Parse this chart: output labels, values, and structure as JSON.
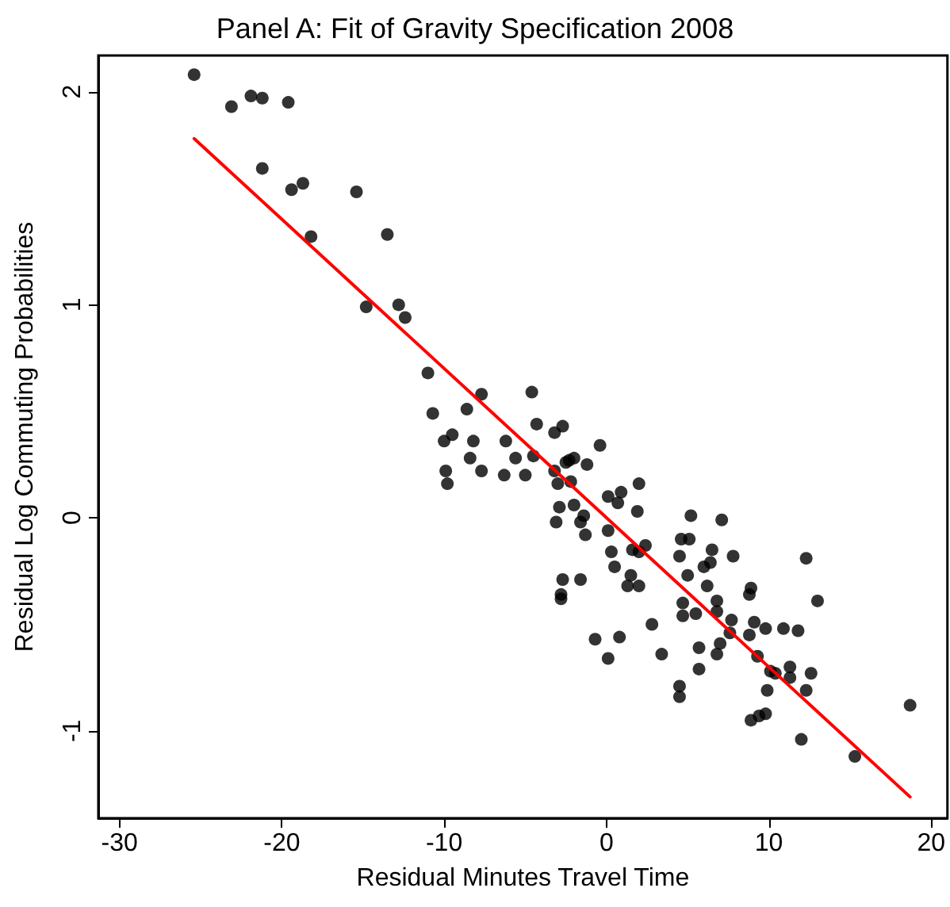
{
  "chart_data": {
    "type": "scatter",
    "title": "Panel A: Fit of Gravity Specification 2008",
    "xlabel": "Residual Minutes Travel Time",
    "ylabel": "Residual Log Commuting Probabilities",
    "xlim": [
      -31.3,
      21
    ],
    "xticks": [
      -30,
      -20,
      -10,
      0,
      10,
      20
    ],
    "ylim": [
      -1.41,
      2.17
    ],
    "yticks": [
      -1,
      0,
      1,
      2
    ],
    "grid": false,
    "marker": "circle",
    "series": [
      {
        "color": "#000000",
        "x": [
          -25.4,
          -23.1,
          -21.9,
          -21.2,
          -19.6,
          -21.2,
          -19.4,
          -18.7,
          -15.4,
          -18.2,
          -13.5,
          -14.8,
          -12.8,
          -12.4,
          -11.0,
          -10.7,
          -8.6,
          -7.7,
          -4.6,
          -4.3,
          -10.0,
          -9.5,
          -8.2,
          -8.4,
          -7.7,
          -9.9,
          -9.8,
          -6.2,
          -5.6,
          -6.3,
          -5.0,
          -4.5,
          -3.2,
          -2.7,
          -0.4,
          -2.5,
          -2.0,
          -2.3,
          -1.2,
          -3.2,
          -3.0,
          -2.2,
          -2.9,
          -3.1,
          -2.0,
          -1.4,
          -1.6,
          -1.3,
          0.1,
          0.9,
          0.7,
          2.0,
          1.9,
          0.1,
          0.3,
          1.6,
          2.0,
          2.4,
          0.5,
          1.5,
          1.3,
          2.0,
          -2.7,
          -2.8,
          -2.8,
          -1.6,
          2.8,
          -0.7,
          0.8,
          0.1,
          3.4,
          4.5,
          4.7,
          4.7,
          5.2,
          7.1,
          4.6,
          5.1,
          6.5,
          7.8,
          5.0,
          6.0,
          6.4,
          6.2,
          12.3,
          13.0,
          8.9,
          8.8,
          5.5,
          6.8,
          6.8,
          7.7,
          9.1,
          9.8,
          8.8,
          10.9,
          11.8,
          7.6,
          5.7,
          7.0,
          6.8,
          5.7,
          9.3,
          10.1,
          10.4,
          11.3,
          11.3,
          12.6,
          12.3,
          9.9,
          4.5,
          4.5,
          8.9,
          9.4,
          9.8,
          12.0,
          18.7,
          15.3
        ],
        "values": [
          2.08,
          1.93,
          1.98,
          1.97,
          1.95,
          1.64,
          1.54,
          1.57,
          1.53,
          1.32,
          1.33,
          0.99,
          1.0,
          0.94,
          0.68,
          0.49,
          0.51,
          0.58,
          0.59,
          0.44,
          0.36,
          0.39,
          0.36,
          0.28,
          0.22,
          0.22,
          0.16,
          0.36,
          0.28,
          0.2,
          0.2,
          0.29,
          0.4,
          0.43,
          0.34,
          0.26,
          0.28,
          0.27,
          0.25,
          0.22,
          0.16,
          0.17,
          0.05,
          -0.02,
          0.06,
          0.01,
          -0.02,
          -0.08,
          0.1,
          0.12,
          0.07,
          0.16,
          0.03,
          -0.06,
          -0.16,
          -0.15,
          -0.16,
          -0.13,
          -0.23,
          -0.27,
          -0.32,
          -0.32,
          -0.29,
          -0.36,
          -0.38,
          -0.29,
          -0.5,
          -0.57,
          -0.56,
          -0.66,
          -0.64,
          -0.18,
          -0.4,
          -0.46,
          0.01,
          -0.01,
          -0.1,
          -0.1,
          -0.15,
          -0.18,
          -0.27,
          -0.23,
          -0.21,
          -0.32,
          -0.19,
          -0.39,
          -0.33,
          -0.36,
          -0.45,
          -0.39,
          -0.44,
          -0.48,
          -0.49,
          -0.52,
          -0.55,
          -0.52,
          -0.53,
          -0.54,
          -0.61,
          -0.59,
          -0.64,
          -0.71,
          -0.65,
          -0.72,
          -0.73,
          -0.7,
          -0.75,
          -0.73,
          -0.81,
          -0.81,
          -0.79,
          -0.84,
          -0.95,
          -0.93,
          -0.92,
          -1.04,
          -0.88,
          -1.12
        ]
      },
      {
        "type": "line",
        "color": "#ff0000",
        "marker": "none",
        "x": [
          -25.4,
          18.7
        ],
        "values": [
          1.78,
          -1.31
        ]
      }
    ]
  }
}
